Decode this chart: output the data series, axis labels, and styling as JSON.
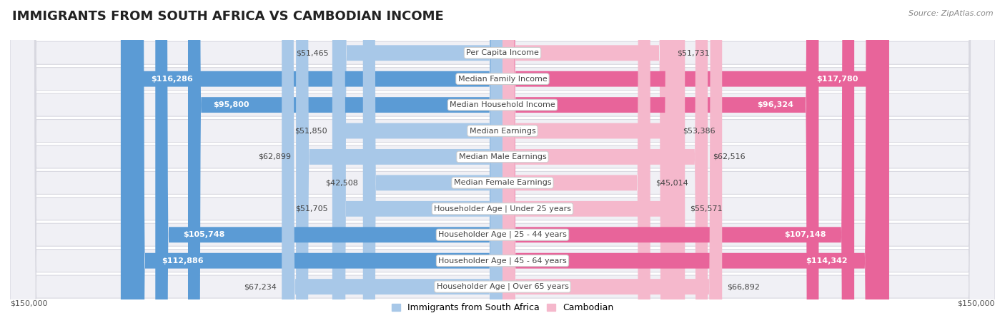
{
  "title": "IMMIGRANTS FROM SOUTH AFRICA VS CAMBODIAN INCOME",
  "source": "Source: ZipAtlas.com",
  "categories": [
    "Per Capita Income",
    "Median Family Income",
    "Median Household Income",
    "Median Earnings",
    "Median Male Earnings",
    "Median Female Earnings",
    "Householder Age | Under 25 years",
    "Householder Age | 25 - 44 years",
    "Householder Age | 45 - 64 years",
    "Householder Age | Over 65 years"
  ],
  "left_values": [
    51465,
    116286,
    95800,
    51850,
    62899,
    42508,
    51705,
    105748,
    112886,
    67234
  ],
  "right_values": [
    51731,
    117780,
    96324,
    53386,
    62516,
    45014,
    55571,
    107148,
    114342,
    66892
  ],
  "left_labels": [
    "$51,465",
    "$116,286",
    "$95,800",
    "$51,850",
    "$62,899",
    "$42,508",
    "$51,705",
    "$105,748",
    "$112,886",
    "$67,234"
  ],
  "right_labels": [
    "$51,731",
    "$117,780",
    "$96,324",
    "$53,386",
    "$62,516",
    "$45,014",
    "$55,571",
    "$107,148",
    "$114,342",
    "$66,892"
  ],
  "left_color_light": "#a8c8e8",
  "left_color_dark": "#5b9bd5",
  "right_color_light": "#f5b8cc",
  "right_color_dark": "#e8649a",
  "large_threshold": 75000,
  "max_value": 150000,
  "legend_left": "Immigrants from South Africa",
  "legend_right": "Cambodian",
  "background_color": "#ffffff",
  "row_bg_color": "#f0f0f5",
  "row_border_color": "#d8d8e0",
  "title_fontsize": 13,
  "label_fontsize": 8,
  "category_fontsize": 8,
  "source_fontsize": 8,
  "axis_label": "$150,000",
  "axis_fontsize": 8
}
